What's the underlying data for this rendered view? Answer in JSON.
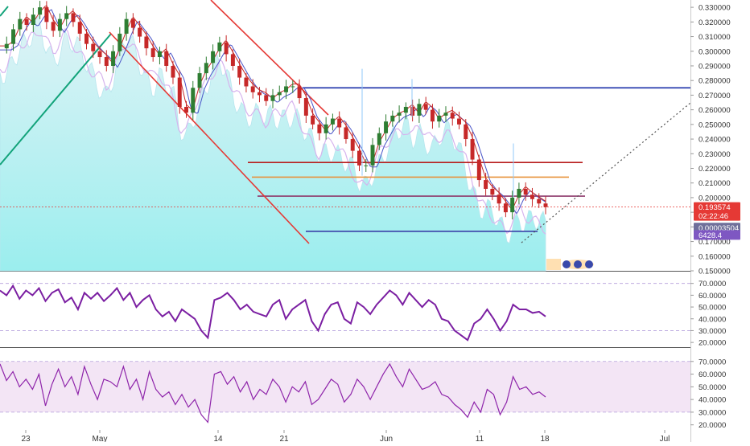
{
  "chart_data": [
    {
      "type": "candlestick",
      "title": "",
      "y_ticks": [
        "0.330000",
        "0.320000",
        "0.310000",
        "0.300000",
        "0.290000",
        "0.280000",
        "0.270000",
        "0.260000",
        "0.250000",
        "0.240000",
        "0.230000",
        "0.220000",
        "0.210000",
        "0.200000",
        "0.190000",
        "0.180000",
        "0.170000",
        "0.160000",
        "0.150000"
      ],
      "ylim": [
        0.15,
        0.335
      ],
      "x_ticks": [
        "23",
        "May",
        "14",
        "21",
        "Jun",
        "11",
        "18",
        "Jul"
      ],
      "price_labels": {
        "last_price": "0.193574",
        "countdown": "02:22:46",
        "btc_value": "0.00003504",
        "volume_value": "6428.4"
      },
      "close_series": [
        0.302,
        0.305,
        0.315,
        0.322,
        0.318,
        0.325,
        0.33,
        0.32,
        0.314,
        0.322,
        0.326,
        0.32,
        0.312,
        0.305,
        0.3,
        0.296,
        0.29,
        0.3,
        0.312,
        0.322,
        0.316,
        0.31,
        0.302,
        0.296,
        0.3,
        0.29,
        0.282,
        0.262,
        0.258,
        0.275,
        0.285,
        0.292,
        0.3,
        0.306,
        0.298,
        0.29,
        0.282,
        0.276,
        0.272,
        0.27,
        0.266,
        0.27,
        0.272,
        0.276,
        0.276,
        0.268,
        0.256,
        0.25,
        0.244,
        0.25,
        0.254,
        0.248,
        0.24,
        0.232,
        0.222,
        0.222,
        0.236,
        0.244,
        0.252,
        0.256,
        0.258,
        0.262,
        0.256,
        0.264,
        0.26,
        0.252,
        0.256,
        0.258,
        0.254,
        0.25,
        0.24,
        0.226,
        0.212,
        0.206,
        0.202,
        0.196,
        0.19,
        0.2,
        0.206,
        0.202,
        0.199,
        0.196,
        0.193574
      ],
      "levels": [
        {
          "price": 0.275,
          "color": "#1a2fa8"
        },
        {
          "price": 0.224,
          "color": "#b71c1c"
        },
        {
          "price": 0.214,
          "color": "#e8913a"
        },
        {
          "price": 0.201,
          "color": "#8e3a6b"
        },
        {
          "price": 0.177,
          "color": "#3a3fa8"
        }
      ]
    },
    {
      "type": "line",
      "title": "",
      "y_ticks": [
        "70.0000",
        "60.0000",
        "50.0000",
        "40.0000",
        "30.0000",
        "20.0000"
      ],
      "ylim": [
        16,
        80
      ],
      "band": [
        30,
        70
      ],
      "series": [
        {
          "color": "#7b1fa2",
          "values": [
            64,
            60,
            68,
            57,
            64,
            60,
            66,
            55,
            62,
            65,
            54,
            58,
            48,
            62,
            57,
            62,
            55,
            60,
            66,
            56,
            62,
            50,
            56,
            60,
            48,
            42,
            46,
            38,
            48,
            44,
            40,
            30,
            24,
            56,
            58,
            62,
            56,
            48,
            52,
            46,
            44,
            42,
            52,
            56,
            40,
            48,
            52,
            56,
            38,
            30,
            44,
            52,
            54,
            40,
            36,
            54,
            50,
            44,
            52,
            58,
            64,
            60,
            52,
            62,
            56,
            50,
            56,
            52,
            40,
            38,
            30,
            26,
            22,
            36,
            40,
            48,
            40,
            30,
            38,
            52,
            48,
            48,
            45,
            46,
            42
          ]
        }
      ]
    },
    {
      "type": "line",
      "title": "",
      "y_ticks": [
        "70.0000",
        "60.0000",
        "50.0000",
        "40.0000",
        "30.0000",
        "20.0000"
      ],
      "ylim": [
        16,
        80
      ],
      "band": [
        30,
        70
      ],
      "series": [
        {
          "color": "#8e24aa",
          "values": [
            68,
            55,
            62,
            50,
            56,
            48,
            60,
            35,
            52,
            64,
            50,
            58,
            44,
            66,
            52,
            40,
            56,
            54,
            50,
            66,
            48,
            56,
            40,
            62,
            48,
            42,
            46,
            36,
            44,
            34,
            40,
            28,
            22,
            60,
            62,
            52,
            58,
            46,
            54,
            40,
            48,
            44,
            56,
            50,
            38,
            50,
            46,
            54,
            36,
            40,
            48,
            56,
            52,
            38,
            44,
            56,
            50,
            40,
            50,
            60,
            68,
            58,
            50,
            64,
            56,
            48,
            50,
            54,
            44,
            42,
            36,
            32,
            26,
            38,
            30,
            48,
            44,
            28,
            38,
            58,
            48,
            50,
            44,
            46,
            42
          ]
        }
      ]
    }
  ]
}
